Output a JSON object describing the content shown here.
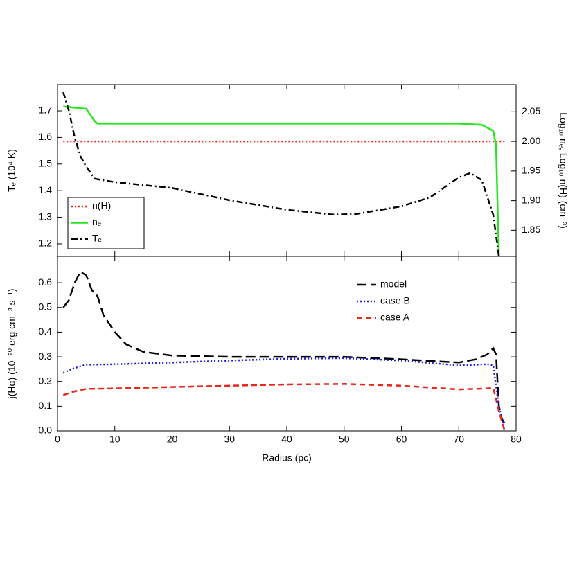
{
  "chart_data": [
    {
      "type": "line",
      "ylabel": "Tₑ (10⁴ K)",
      "y2label": "Log₁₀ nₑ, Log₁₀ n(H) (cm⁻³)",
      "xlim": [
        0,
        80
      ],
      "xticks": [
        0,
        10,
        20,
        30,
        40,
        50,
        60,
        70,
        80
      ],
      "ylim": [
        1.153,
        1.799
      ],
      "yticks": [
        1.2,
        1.3,
        1.4,
        1.5,
        1.6,
        1.7
      ],
      "y2lim": [
        1.806,
        2.096
      ],
      "y2ticks": [
        1.85,
        {
          "value": 1.9,
          "label": "1.90"
        },
        1.95,
        {
          "value": 2,
          "label": "2.00"
        },
        2.05
      ],
      "legend": "lower left",
      "series": [
        {
          "name": "n(H)",
          "color": "#e8261a",
          "style": "dotted",
          "axis": "y2",
          "x": [
            1,
            78
          ],
          "values": [
            2.0,
            2.0
          ]
        },
        {
          "name": "nₑ",
          "color": "#22e81a",
          "style": "solid",
          "axis": "y2",
          "x": [
            1,
            5,
            6.5,
            7,
            10,
            30,
            50,
            70,
            74,
            76,
            76.5,
            77
          ],
          "values": [
            2.059,
            2.055,
            2.034,
            2.03,
            2.03,
            2.03,
            2.03,
            2.03,
            2.028,
            2.018,
            1.994,
            1.806
          ]
        },
        {
          "name": "Tₑ",
          "color": "#000000",
          "style": "dashdot",
          "axis": "y",
          "x": [
            1,
            2,
            3,
            4,
            5,
            6.5,
            7,
            10,
            20,
            30,
            40,
            48,
            52,
            60,
            65,
            70,
            72,
            74,
            76,
            77
          ],
          "values": [
            1.77,
            1.7,
            1.6,
            1.53,
            1.49,
            1.445,
            1.443,
            1.432,
            1.41,
            1.364,
            1.328,
            1.31,
            1.312,
            1.341,
            1.375,
            1.45,
            1.466,
            1.44,
            1.31,
            1.153
          ]
        }
      ]
    },
    {
      "type": "line",
      "xlabel": "Radius (pc)",
      "ylabel": "j(Hα) (10⁻²⁰ erg cm⁻³ s⁻¹)",
      "xlim": [
        0,
        80
      ],
      "xticks": [
        0,
        10,
        20,
        30,
        40,
        50,
        60,
        70,
        80
      ],
      "ylim": [
        0,
        0.707
      ],
      "yticks": [
        {
          "value": 0,
          "label": "0.0"
        },
        0.1,
        0.2,
        0.3,
        0.4,
        0.5,
        0.6
      ],
      "legend": "upper right",
      "series": [
        {
          "name": "model",
          "color": "#000000",
          "style": "longdash",
          "x": [
            1,
            2,
            3,
            4,
            5,
            6,
            7,
            8,
            10,
            12,
            15,
            20,
            30,
            40,
            50,
            60,
            70,
            73,
            75,
            76,
            76.5,
            77,
            77.5,
            78
          ],
          "values": [
            0.5,
            0.53,
            0.6,
            0.645,
            0.63,
            0.57,
            0.545,
            0.47,
            0.4,
            0.35,
            0.32,
            0.305,
            0.3,
            0.3,
            0.3,
            0.29,
            0.277,
            0.29,
            0.31,
            0.335,
            0.31,
            0.1,
            0.05,
            0.03
          ]
        },
        {
          "name": "case B",
          "color": "#1a1ae8",
          "style": "dotted",
          "x": [
            1,
            3,
            5,
            10,
            20,
            30,
            40,
            50,
            60,
            70,
            75,
            76,
            77,
            78
          ],
          "values": [
            0.235,
            0.255,
            0.268,
            0.27,
            0.277,
            0.285,
            0.292,
            0.295,
            0.285,
            0.265,
            0.27,
            0.265,
            0.1,
            0.0
          ]
        },
        {
          "name": "case A",
          "color": "#e8261a",
          "style": "dashed",
          "x": [
            1,
            3,
            5,
            10,
            20,
            30,
            40,
            50,
            60,
            70,
            75,
            76,
            77,
            78
          ],
          "values": [
            0.145,
            0.16,
            0.17,
            0.172,
            0.178,
            0.183,
            0.188,
            0.19,
            0.183,
            0.168,
            0.172,
            0.175,
            0.08,
            0.0
          ]
        }
      ]
    }
  ]
}
